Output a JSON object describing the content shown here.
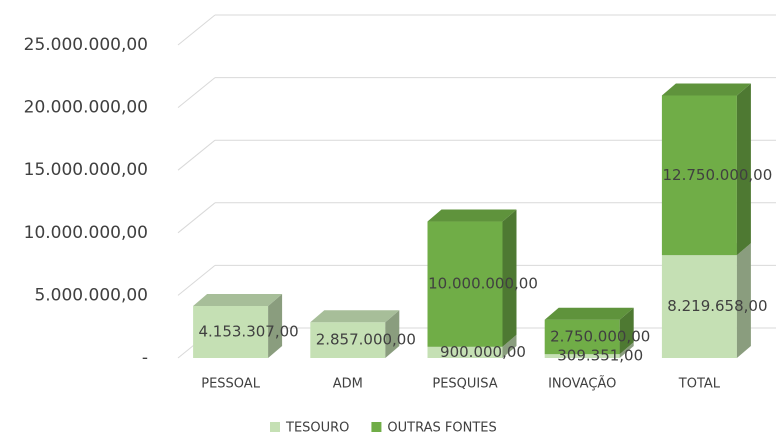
{
  "chart_data": {
    "type": "bar3d-stacked",
    "categories": [
      "PESSOAL",
      "ADM",
      "PESQUISA",
      "INOVAÇÃO",
      "TOTAL"
    ],
    "series": [
      {
        "name": "TESOURO",
        "color": "#c5e0b4",
        "values": [
          4153307,
          2857000,
          900000,
          309351,
          8219658
        ],
        "value_labels": [
          "4.153.307,00",
          "2.857.000,00",
          "900.000,00",
          "309.351,00",
          "8.219.658,00"
        ]
      },
      {
        "name": "OUTRAS FONTES",
        "color": "#70ad47",
        "values": [
          null,
          null,
          10000000,
          2750000,
          12750000
        ],
        "value_labels": [
          null,
          null,
          "10.000.000,00",
          "2.750.000,00",
          "12.750.000,00"
        ]
      }
    ],
    "ylim": [
      0,
      25000000
    ],
    "yticks": [
      {
        "value": 0,
        "label": "-"
      },
      {
        "value": 5000000,
        "label": "5.000.000,00"
      },
      {
        "value": 10000000,
        "label": "10.000.000,00"
      },
      {
        "value": 15000000,
        "label": "15.000.000,00"
      },
      {
        "value": 20000000,
        "label": "20.000.000,00"
      },
      {
        "value": 25000000,
        "label": "25.000.000,00"
      }
    ],
    "grid": true,
    "legend": "bottom"
  }
}
